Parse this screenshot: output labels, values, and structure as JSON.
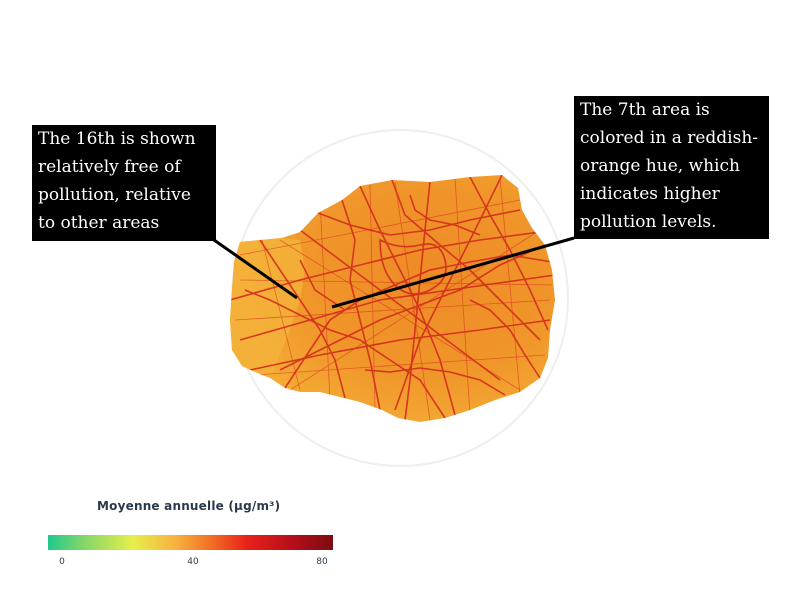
{
  "callouts": {
    "left": "The 16th is shown relatively free of pollution, relative to other areas",
    "right": "The 7th area is colored in a reddish-orange hue, which indicates higher pollution levels."
  },
  "legend": {
    "title": "Moyenne annuelle (µg/m³)",
    "ticks": [
      "0",
      "40",
      "80"
    ],
    "colors": [
      "#1fc98f",
      "#e8ee4a",
      "#f26a22",
      "#e8201a",
      "#7d0a12"
    ]
  },
  "map": {
    "fill_color": "#f0962a",
    "road_color": "#d0261a",
    "west_fill_color": "#f2b23a"
  }
}
